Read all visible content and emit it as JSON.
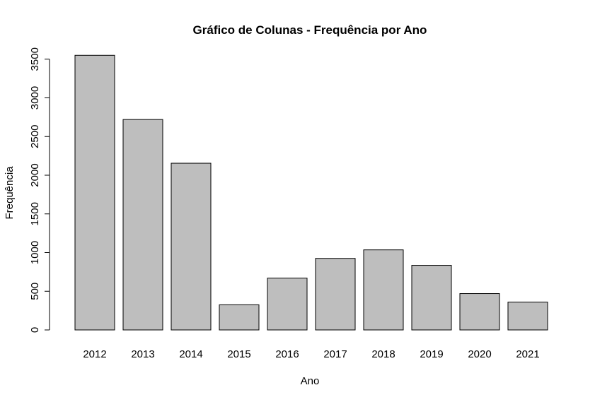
{
  "chart_data": {
    "type": "bar",
    "title": "Gráfico de Colunas - Frequência por Ano",
    "xlabel": "Ano",
    "ylabel": "Frequência",
    "categories": [
      "2012",
      "2013",
      "2014",
      "2015",
      "2016",
      "2017",
      "2018",
      "2019",
      "2020",
      "2021"
    ],
    "values": [
      3550,
      2720,
      2155,
      325,
      670,
      925,
      1035,
      835,
      470,
      360
    ],
    "ylim": [
      0,
      3500
    ],
    "y_ticks": [
      "0",
      "500",
      "1000",
      "1500",
      "2000",
      "2500",
      "3000",
      "3500"
    ],
    "grid": false,
    "bar_color": "#bebebe",
    "bar_edge_color": "#000000"
  }
}
